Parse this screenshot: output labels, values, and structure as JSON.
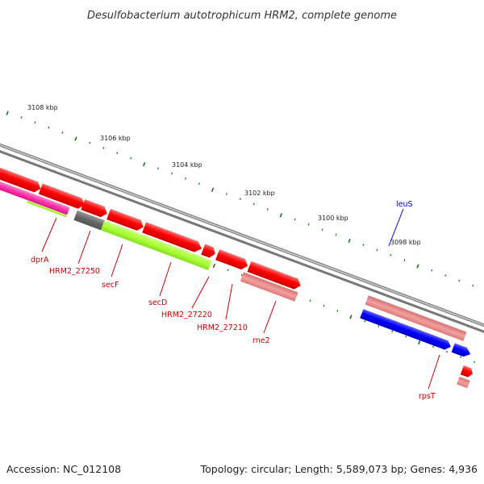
{
  "header": {
    "title": "Desulfobacterium autotrophicum HRM2, complete genome"
  },
  "footer": {
    "accession": "Accession: NC_012108",
    "summary": "Topology: circular; Length: 5,589,073 bp; Genes: 4,936"
  },
  "scale": {
    "tick_labels": [
      "3108 kbp",
      "3106 kbp",
      "3104 kbp",
      "3102 kbp",
      "3100 kbp",
      "3098 kbp"
    ]
  },
  "genes": [
    {
      "name": "dprA",
      "color": "#cc0000"
    },
    {
      "name": "HRM2_27250",
      "color": "#cc0000"
    },
    {
      "name": "secF",
      "color": "#cc0000"
    },
    {
      "name": "secD",
      "color": "#cc0000"
    },
    {
      "name": "HRM2_27220",
      "color": "#cc0000"
    },
    {
      "name": "HRM2_27210",
      "color": "#cc0000"
    },
    {
      "name": "rne2",
      "color": "#cc0000"
    },
    {
      "name": "leuS",
      "color": "#0000cc"
    },
    {
      "name": "rpsT",
      "color": "#cc0000"
    }
  ],
  "colors": {
    "cds": "#ff0000",
    "rna": "#e88080",
    "cog_magenta": "#ff33aa",
    "cog_green": "#aaff33",
    "cog_gray": "#666666",
    "cog_blue": "#0000ff",
    "backbone": "#888888",
    "tick": "#117711"
  }
}
